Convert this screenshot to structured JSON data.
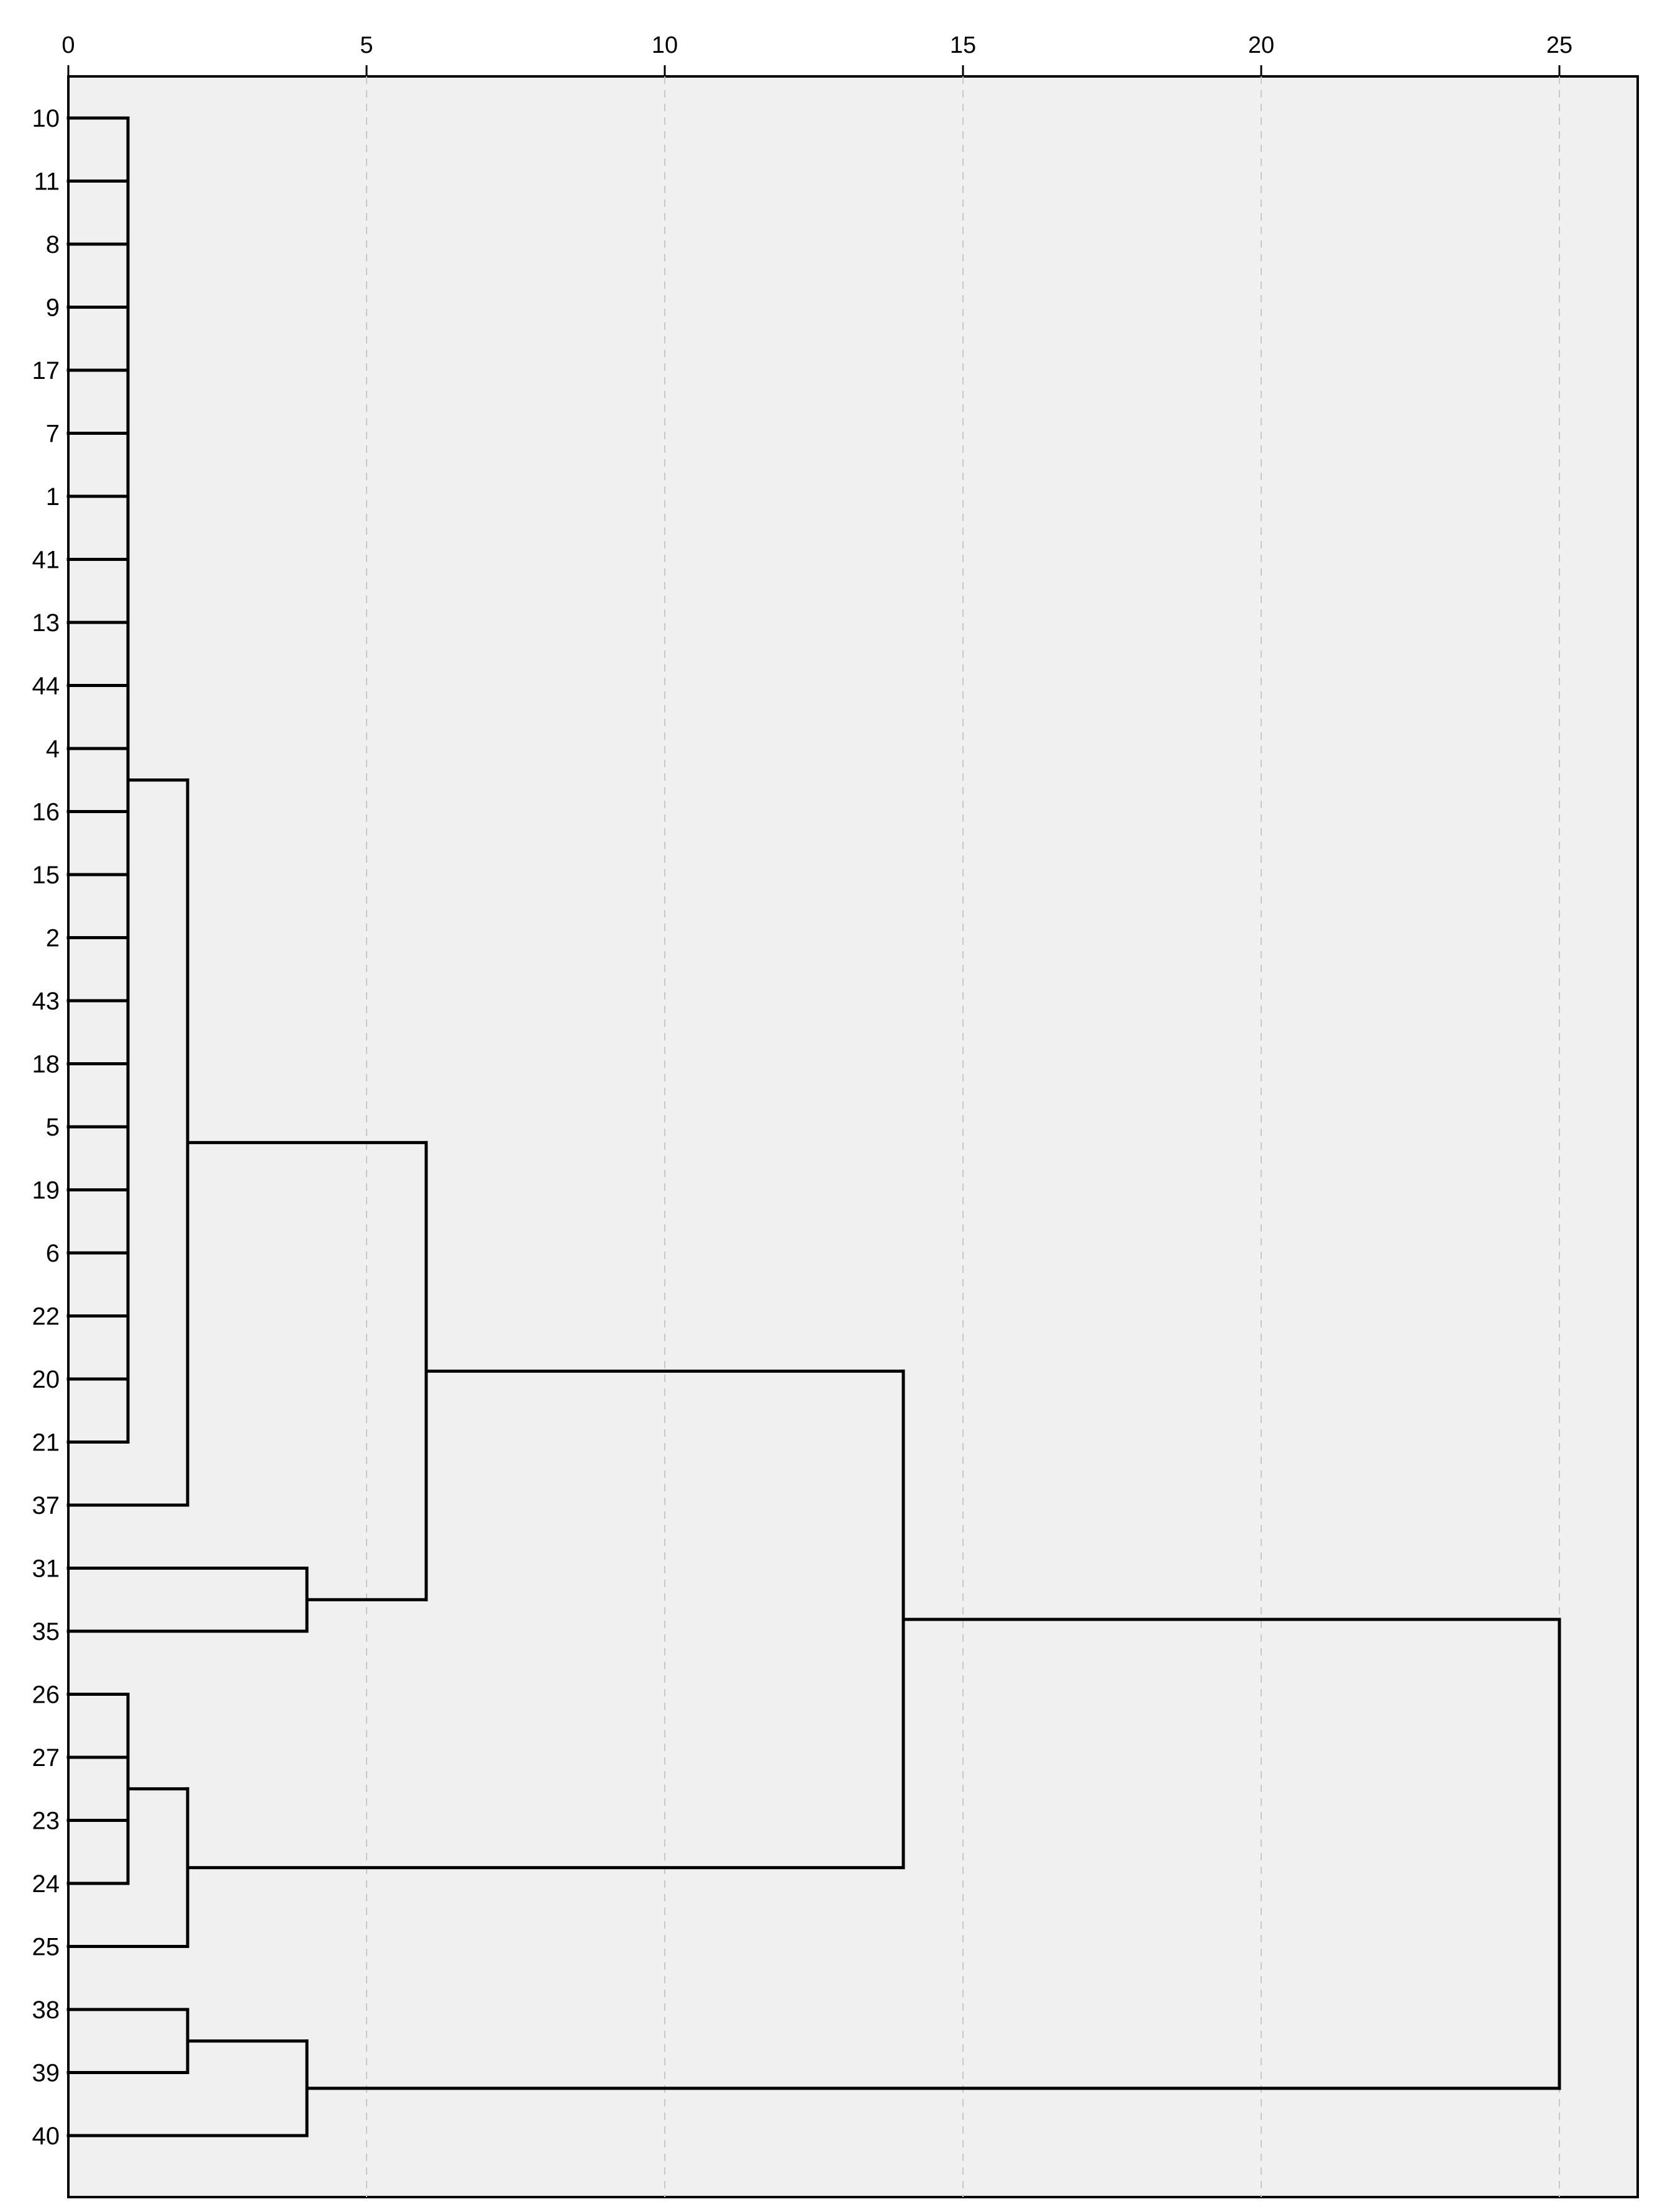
{
  "chart_data": {
    "type": "dendrogram",
    "orientation": "horizontal",
    "title": "",
    "xlabel": "",
    "ylabel": "",
    "xlim": [
      0,
      26.3
    ],
    "x_ticks": [
      0,
      5,
      10,
      15,
      20,
      25
    ],
    "x_tick_labels": [
      "0",
      "5",
      "10",
      "15",
      "20",
      "25"
    ],
    "x_axis_position": "top",
    "grid": "vertical dashed",
    "leaves": [
      "10",
      "11",
      "8",
      "9",
      "17",
      "7",
      "1",
      "41",
      "13",
      "44",
      "4",
      "16",
      "15",
      "2",
      "43",
      "18",
      "5",
      "19",
      "6",
      "22",
      "20",
      "21",
      "37",
      "31",
      "35",
      "26",
      "27",
      "23",
      "24",
      "25",
      "38",
      "39",
      "40"
    ],
    "merges": [
      {
        "id": "A",
        "children": [
          "10",
          "11",
          "8",
          "9",
          "17",
          "7",
          "1",
          "41",
          "13",
          "44",
          "4",
          "16",
          "15",
          "2",
          "43",
          "18",
          "5",
          "19",
          "6",
          "22",
          "20",
          "21"
        ],
        "height": 1
      },
      {
        "id": "B",
        "children": [
          "A",
          "37"
        ],
        "height": 2
      },
      {
        "id": "C",
        "children": [
          "31",
          "35"
        ],
        "height": 4
      },
      {
        "id": "D",
        "children": [
          "B",
          "C"
        ],
        "height": 6
      },
      {
        "id": "E",
        "children": [
          "26",
          "27",
          "23",
          "24"
        ],
        "height": 1
      },
      {
        "id": "F",
        "children": [
          "E",
          "25"
        ],
        "height": 2
      },
      {
        "id": "G",
        "children": [
          "D",
          "F"
        ],
        "height": 14
      },
      {
        "id": "H",
        "children": [
          "38",
          "39"
        ],
        "height": 2
      },
      {
        "id": "I",
        "children": [
          "H",
          "40"
        ],
        "height": 4
      },
      {
        "id": "J",
        "children": [
          "G",
          "I"
        ],
        "height": 25
      }
    ]
  },
  "colors": {
    "plot_background": "#f0f0f0",
    "link_color": "#000000",
    "grid_color": "#c8c8c8"
  }
}
